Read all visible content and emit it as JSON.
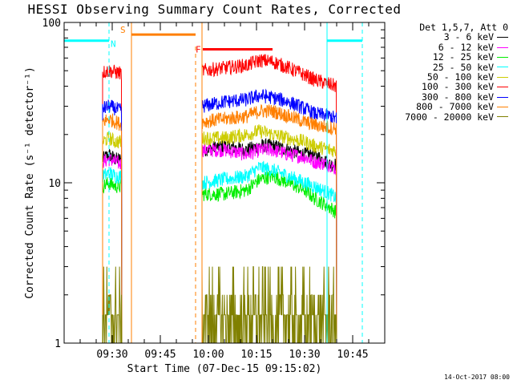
{
  "chart_data": {
    "type": "line",
    "title": "HESSI Observing Summary Count Rates, Corrected",
    "xlabel": "Start Time (07-Dec-15 09:15:02)",
    "ylabel": "Corrected Count Rate (s⁻¹ detector⁻¹)",
    "yscale": "log",
    "ylim": [
      1,
      100
    ],
    "xlim": [
      "09:15",
      "10:55"
    ],
    "x_ticks": [
      "09:30",
      "09:45",
      "10:00",
      "10:15",
      "10:30",
      "10:45"
    ],
    "y_ticks": [
      "1",
      "10",
      "100"
    ],
    "legend_header": "Det 1,5,7, Att 0",
    "legend_placement": "outside-right",
    "series": [
      {
        "name": "3 - 6 keV",
        "color": "#000000",
        "segments": [
          {
            "x": [
              "09:27",
              "09:29",
              "09:31",
              "09:33"
            ],
            "y": [
              14,
              15,
              14,
              14
            ]
          },
          {
            "x": [
              "09:58",
              "10:05",
              "10:12",
              "10:16",
              "10:20",
              "10:25",
              "10:30",
              "10:33",
              "10:38",
              "10:40"
            ],
            "y": [
              16,
              17,
              16,
              17,
              17,
              16,
              15,
              15,
              13,
              13
            ]
          }
        ]
      },
      {
        "name": "6 - 12 keV",
        "color": "#ff00ff",
        "segments": [
          {
            "x": [
              "09:27",
              "09:29",
              "09:31",
              "09:33"
            ],
            "y": [
              13.5,
              14,
              13.5,
              13
            ]
          },
          {
            "x": [
              "09:58",
              "10:05",
              "10:12",
              "10:16",
              "10:20",
              "10:25",
              "10:30",
              "10:33",
              "10:38",
              "10:40"
            ],
            "y": [
              16,
              16,
              15,
              16,
              16,
              15,
              14.5,
              13.5,
              13,
              12
            ]
          }
        ]
      },
      {
        "name": "12 - 25 keV",
        "color": "#00ee00",
        "segments": [
          {
            "x": [
              "09:27",
              "09:29",
              "09:31",
              "09:33"
            ],
            "y": [
              9.5,
              10,
              9.5,
              9.5
            ]
          },
          {
            "x": [
              "09:58",
              "10:05",
              "10:12",
              "10:16",
              "10:20",
              "10:25",
              "10:30",
              "10:33",
              "10:38",
              "10:40"
            ],
            "y": [
              8.5,
              8.5,
              9,
              10.5,
              11,
              10,
              9,
              8,
              7,
              6.5
            ]
          }
        ]
      },
      {
        "name": "25 - 50 keV",
        "color": "#00ffff",
        "segments": [
          {
            "x": [
              "09:27",
              "09:29",
              "09:31",
              "09:33"
            ],
            "y": [
              11,
              11.5,
              11,
              11
            ]
          },
          {
            "x": [
              "09:58",
              "10:05",
              "10:12",
              "10:16",
              "10:20",
              "10:25",
              "10:30",
              "10:33",
              "10:38",
              "10:40"
            ],
            "y": [
              10,
              10.5,
              11,
              12.5,
              12,
              11,
              10,
              9.5,
              8.5,
              8
            ]
          }
        ]
      },
      {
        "name": "50 - 100 keV",
        "color": "#cccc00",
        "segments": [
          {
            "x": [
              "09:27",
              "09:29",
              "09:31",
              "09:33"
            ],
            "y": [
              18,
              19,
              18,
              18
            ]
          },
          {
            "x": [
              "09:58",
              "10:05",
              "10:12",
              "10:16",
              "10:20",
              "10:25",
              "10:30",
              "10:33",
              "10:38",
              "10:40"
            ],
            "y": [
              19,
              19,
              20,
              21,
              20,
              19,
              18,
              17,
              16,
              16
            ]
          }
        ]
      },
      {
        "name": "100 - 300 keV",
        "color": "#ff0000",
        "segments": [
          {
            "x": [
              "09:27",
              "09:29",
              "09:31",
              "09:33"
            ],
            "y": [
              49,
              50,
              49,
              48
            ]
          },
          {
            "x": [
              "09:58",
              "10:05",
              "10:12",
              "10:16",
              "10:20",
              "10:25",
              "10:30",
              "10:33",
              "10:38",
              "10:40"
            ],
            "y": [
              50,
              52,
              54,
              58,
              57,
              52,
              47,
              44,
              41,
              40
            ]
          }
        ]
      },
      {
        "name": "300 - 800 keV",
        "color": "#0000ff",
        "segments": [
          {
            "x": [
              "09:27",
              "09:29",
              "09:31",
              "09:33"
            ],
            "y": [
              29,
              30,
              29,
              28
            ]
          },
          {
            "x": [
              "09:58",
              "10:05",
              "10:12",
              "10:16",
              "10:20",
              "10:25",
              "10:30",
              "10:33",
              "10:38",
              "10:40"
            ],
            "y": [
              30,
              32,
              33,
              35,
              34,
              32,
              29,
              27,
              26,
              25
            ]
          }
        ]
      },
      {
        "name": "800 - 7000 keV",
        "color": "#ff7f00",
        "segments": [
          {
            "x": [
              "09:27",
              "09:29",
              "09:31",
              "09:33"
            ],
            "y": [
              24,
              25,
              24,
              23
            ]
          },
          {
            "x": [
              "09:58",
              "10:05",
              "10:12",
              "10:16",
              "10:20",
              "10:25",
              "10:30",
              "10:33",
              "10:38",
              "10:40"
            ],
            "y": [
              24,
              25,
              26,
              28,
              28,
              26,
              24,
              23,
              22,
              22
            ]
          }
        ]
      },
      {
        "name": "7000 - 20000 keV",
        "color": "#808000",
        "segments": [
          {
            "x": [
              "09:27",
              "09:29",
              "09:31",
              "09:33"
            ],
            "y": [
              2,
              1.5,
              2,
              1.5
            ]
          },
          {
            "x": [
              "09:58",
              "10:05",
              "10:12",
              "10:16",
              "10:20",
              "10:25",
              "10:30",
              "10:33",
              "10:38",
              "10:40"
            ],
            "y": [
              1.5,
              1.5,
              2,
              3,
              2,
              1.5,
              2,
              1.5,
              1.5,
              1.5
            ]
          }
        ]
      }
    ],
    "annotations": {
      "night_bars": [
        {
          "x": [
            "09:15",
            "09:29"
          ],
          "y": 77,
          "color": "#00ffff"
        },
        {
          "x": [
            "10:37",
            "10:48"
          ],
          "y": 77,
          "color": "#00ffff"
        }
      ],
      "night_verticals": {
        "solid": [
          "09:36",
          "10:37"
        ],
        "dashed": [
          "09:29",
          "10:48"
        ],
        "color": "#00ffff"
      },
      "saa": {
        "label": "S",
        "x": [
          "09:36",
          "09:56"
        ],
        "y": 84,
        "color": "#ff7f00"
      },
      "saa_verticals": {
        "solid": [
          "09:36",
          "09:58"
        ],
        "dashed": [
          "09:56"
        ],
        "color": "#ff7f00"
      },
      "flare": {
        "label": "F",
        "x": [
          "09:57",
          "10:20"
        ],
        "y": 68,
        "color": "#ff0000"
      },
      "night_label": {
        "label": "N",
        "x": "09:30",
        "y": 79
      }
    }
  },
  "footer": {
    "date": "14-Oct-2017 08:00"
  }
}
